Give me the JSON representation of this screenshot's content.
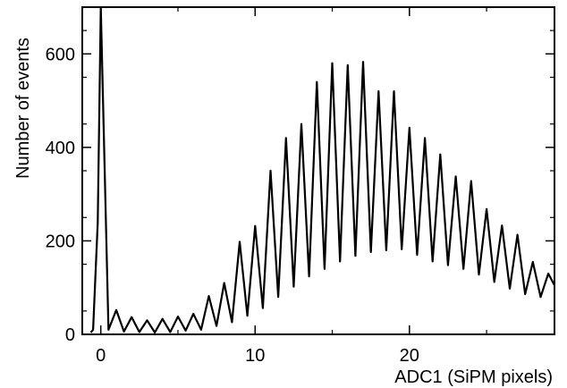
{
  "chart_data": {
    "type": "line",
    "title": "",
    "xlabel": "ADC1 (SiPM pixels)",
    "ylabel": "Number of events",
    "xlim": [
      -1.2,
      29.4
    ],
    "ylim": [
      0,
      700
    ],
    "grid": false,
    "legend": "none",
    "line_color": "#000000",
    "x_ticks": [
      {
        "value": 0,
        "label": "0"
      },
      {
        "value": 10,
        "label": "10"
      },
      {
        "value": 20,
        "label": "20"
      }
    ],
    "y_ticks": [
      {
        "value": 0,
        "label": "0"
      },
      {
        "value": 200,
        "label": "200"
      },
      {
        "value": 400,
        "label": "400"
      },
      {
        "value": 600,
        "label": "600"
      }
    ],
    "peaks": [
      {
        "x": -0.2,
        "y": 240
      },
      {
        "x": 0,
        "y": 700
      },
      {
        "x": 1,
        "y": 52
      },
      {
        "x": 2,
        "y": 37
      },
      {
        "x": 3,
        "y": 30
      },
      {
        "x": 4,
        "y": 33
      },
      {
        "x": 5,
        "y": 38
      },
      {
        "x": 6,
        "y": 44
      },
      {
        "x": 7,
        "y": 82
      },
      {
        "x": 8,
        "y": 110
      },
      {
        "x": 9,
        "y": 198
      },
      {
        "x": 10,
        "y": 232
      },
      {
        "x": 11,
        "y": 350
      },
      {
        "x": 12,
        "y": 420
      },
      {
        "x": 13,
        "y": 450
      },
      {
        "x": 14,
        "y": 540
      },
      {
        "x": 15,
        "y": 580
      },
      {
        "x": 16,
        "y": 576
      },
      {
        "x": 17,
        "y": 583
      },
      {
        "x": 18,
        "y": 520
      },
      {
        "x": 19,
        "y": 520
      },
      {
        "x": 20,
        "y": 442
      },
      {
        "x": 21,
        "y": 420
      },
      {
        "x": 22,
        "y": 385
      },
      {
        "x": 23,
        "y": 338
      },
      {
        "x": 24,
        "y": 328
      },
      {
        "x": 25,
        "y": 268
      },
      {
        "x": 26,
        "y": 233
      },
      {
        "x": 27,
        "y": 213
      },
      {
        "x": 28,
        "y": 155
      },
      {
        "x": 29,
        "y": 130
      }
    ],
    "valleys": [
      {
        "x": -0.5,
        "y": 10
      },
      {
        "x": 0.5,
        "y": 10
      },
      {
        "x": 1.5,
        "y": 6
      },
      {
        "x": 2.5,
        "y": 5
      },
      {
        "x": 3.5,
        "y": 4
      },
      {
        "x": 4.5,
        "y": 5
      },
      {
        "x": 5.5,
        "y": 8
      },
      {
        "x": 6.5,
        "y": 10
      },
      {
        "x": 7.5,
        "y": 18
      },
      {
        "x": 8.5,
        "y": 26
      },
      {
        "x": 9.5,
        "y": 40
      },
      {
        "x": 10.5,
        "y": 56
      },
      {
        "x": 11.5,
        "y": 80
      },
      {
        "x": 12.5,
        "y": 102
      },
      {
        "x": 13.5,
        "y": 124
      },
      {
        "x": 14.5,
        "y": 140
      },
      {
        "x": 15.5,
        "y": 156
      },
      {
        "x": 16.5,
        "y": 168
      },
      {
        "x": 17.5,
        "y": 176
      },
      {
        "x": 18.5,
        "y": 180
      },
      {
        "x": 19.5,
        "y": 182
      },
      {
        "x": 20.5,
        "y": 170
      },
      {
        "x": 21.5,
        "y": 156
      },
      {
        "x": 22.5,
        "y": 148
      },
      {
        "x": 23.5,
        "y": 140
      },
      {
        "x": 24.5,
        "y": 128
      },
      {
        "x": 25.5,
        "y": 112
      },
      {
        "x": 26.5,
        "y": 98
      },
      {
        "x": 27.5,
        "y": 86
      },
      {
        "x": 28.5,
        "y": 80
      },
      {
        "x": 29.4,
        "y": 105
      }
    ]
  }
}
